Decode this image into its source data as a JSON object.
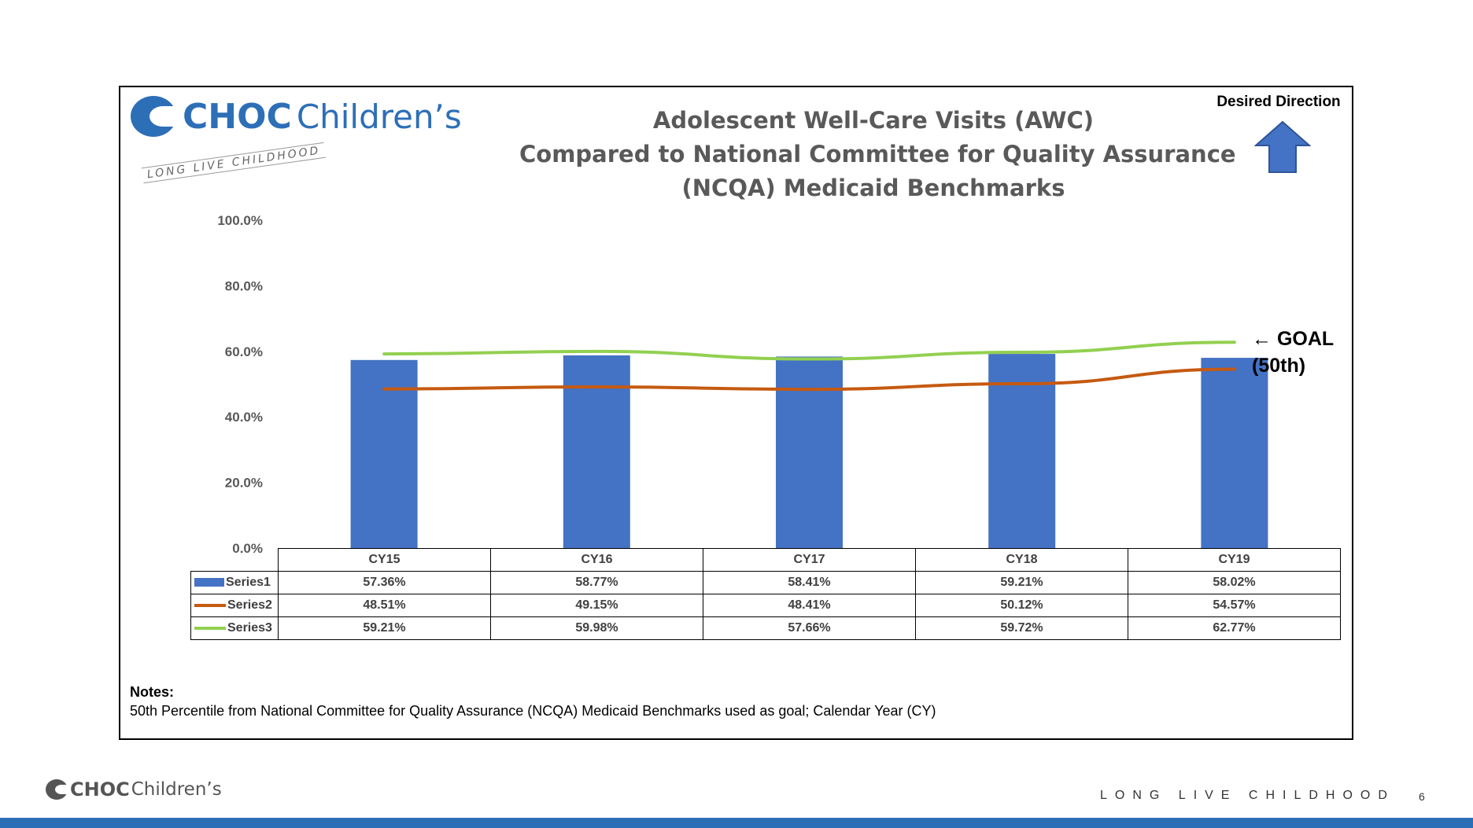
{
  "logo": {
    "choc": "CHOC",
    "childrens": "Children’s",
    "tagline": "LONG LIVE CHILDHOOD"
  },
  "desired_direction": {
    "label": "Desired Direction",
    "icon": "arrow-up-icon",
    "color": "#4472c4"
  },
  "goal": {
    "line1": "← GOAL",
    "line2": "(50th)"
  },
  "notes": {
    "heading": "Notes:",
    "text": "50th Percentile from National Committee for Quality Assurance (NCQA) Medicaid Benchmarks used as goal; Calendar Year (CY)"
  },
  "footer": {
    "logo_choc": "CHOC",
    "logo_childrens": "Children’s",
    "tagline": "LONG LIVE CHILDHOOD",
    "page_number": "6",
    "bar_color": "#2d6fb7"
  },
  "chart_data": {
    "type": "bar",
    "title_lines": [
      "Adolescent Well-Care Visits (AWC)",
      "Compared to National Committee for Quality Assurance",
      "(NCQA) Medicaid Benchmarks"
    ],
    "categories": [
      "CY15",
      "CY16",
      "CY17",
      "CY18",
      "CY19"
    ],
    "y_ticks": [
      "0.0%",
      "20.0%",
      "40.0%",
      "60.0%",
      "80.0%",
      "100.0%"
    ],
    "ylim": [
      0,
      100
    ],
    "series": [
      {
        "name": "Series1",
        "kind": "bar",
        "color": "#4472c4",
        "values": [
          57.36,
          58.77,
          58.41,
          59.21,
          58.02
        ],
        "labels": [
          "57.36%",
          "58.77%",
          "58.41%",
          "59.21%",
          "58.02%"
        ]
      },
      {
        "name": "Series2",
        "kind": "line",
        "color": "#c55a11",
        "values": [
          48.51,
          49.15,
          48.41,
          50.12,
          54.57
        ],
        "labels": [
          "48.51%",
          "49.15%",
          "48.41%",
          "50.12%",
          "54.57%"
        ]
      },
      {
        "name": "Series3",
        "kind": "line",
        "color": "#92d050",
        "values": [
          59.21,
          59.98,
          57.66,
          59.72,
          62.77
        ],
        "labels": [
          "59.21%",
          "59.98%",
          "57.66%",
          "59.72%",
          "62.77%"
        ]
      }
    ],
    "grid": false,
    "legend": "data-table"
  }
}
